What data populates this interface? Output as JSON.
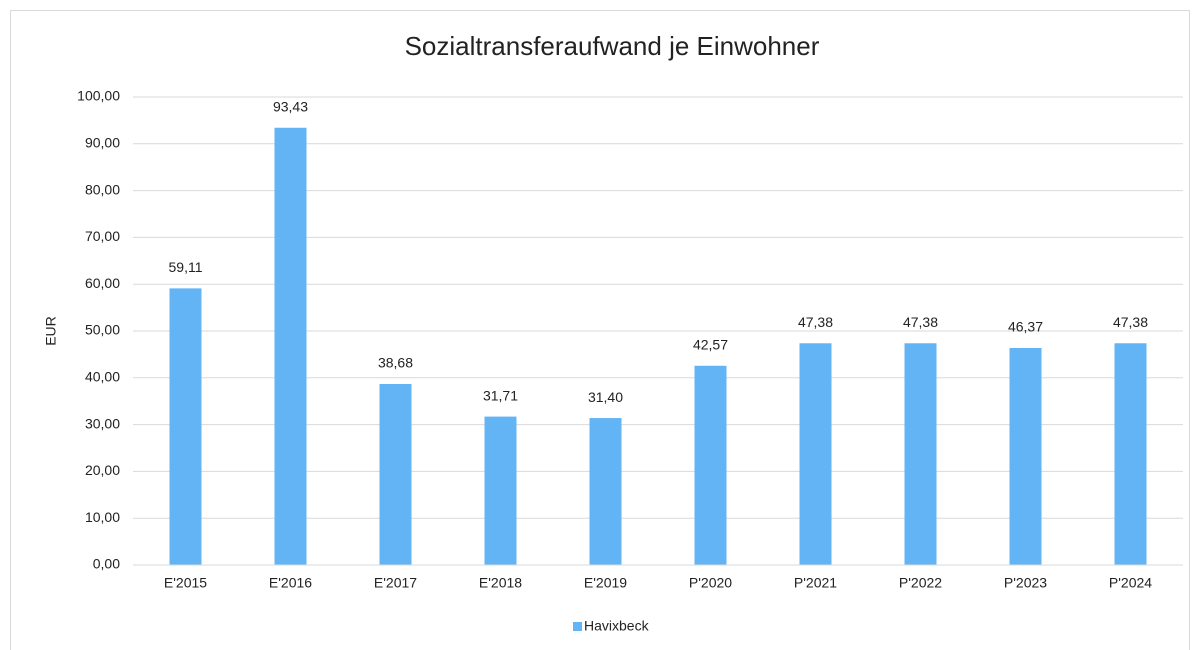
{
  "chart_data": {
    "type": "bar",
    "title": "Sozialtransferaufwand je Einwohner",
    "y_label": "EUR",
    "categories": [
      "E'2015",
      "E'2016",
      "E'2017",
      "E'2018",
      "E'2019",
      "P'2020",
      "P'2021",
      "P'2022",
      "P'2023",
      "P'2024"
    ],
    "series": [
      {
        "name": "Havixbeck",
        "color": "#63b4f5",
        "values": [
          59.11,
          93.43,
          38.68,
          31.71,
          31.4,
          42.57,
          47.38,
          47.38,
          46.37,
          47.38
        ],
        "value_labels": [
          "59,11",
          "93,43",
          "38,68",
          "31,71",
          "31,40",
          "42,57",
          "47,38",
          "47,38",
          "46,37",
          "47,38"
        ]
      }
    ],
    "ylim": [
      0,
      100
    ],
    "yticks": [
      {
        "value": 0,
        "label": "0,00"
      },
      {
        "value": 10,
        "label": "10,00"
      },
      {
        "value": 20,
        "label": "20,00"
      },
      {
        "value": 30,
        "label": "30,00"
      },
      {
        "value": 40,
        "label": "40,00"
      },
      {
        "value": 50,
        "label": "50,00"
      },
      {
        "value": 60,
        "label": "60,00"
      },
      {
        "value": 70,
        "label": "70,00"
      },
      {
        "value": 80,
        "label": "80,00"
      },
      {
        "value": 90,
        "label": "90,00"
      },
      {
        "value": 100,
        "label": "100,00"
      }
    ],
    "grid": true,
    "legend": "bottom"
  }
}
